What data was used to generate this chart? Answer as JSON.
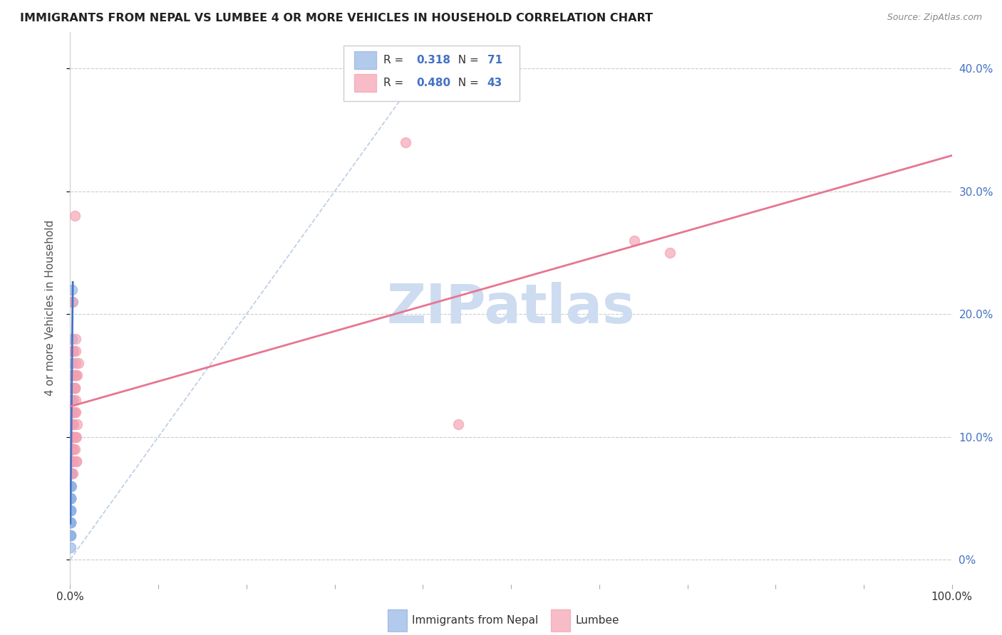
{
  "title": "IMMIGRANTS FROM NEPAL VS LUMBEE 4 OR MORE VEHICLES IN HOUSEHOLD CORRELATION CHART",
  "source": "Source: ZipAtlas.com",
  "ylabel": "4 or more Vehicles in Household",
  "xlim": [
    0,
    1.0
  ],
  "ylim": [
    -0.02,
    0.43
  ],
  "yticks": [
    0.0,
    0.1,
    0.2,
    0.3,
    0.4
  ],
  "xticks": [
    0.0,
    0.1,
    0.2,
    0.3,
    0.4,
    0.5,
    0.6,
    0.7,
    0.8,
    0.9,
    1.0
  ],
  "legend_R1": "0.318",
  "legend_N1": "71",
  "legend_R2": "0.480",
  "legend_N2": "43",
  "color_nepal": "#92b4e3",
  "color_lumbee": "#f4a0b0",
  "color_nepal_line": "#4472c4",
  "color_lumbee_line": "#e87590",
  "color_axis_right": "#4472c4",
  "watermark_color": "#cddcf0",
  "nepal_x": [
    0.0005,
    0.001,
    0.0008,
    0.0015,
    0.002,
    0.0008,
    0.0006,
    0.0005,
    0.0012,
    0.0018,
    0.0007,
    0.0009,
    0.0013,
    0.0006,
    0.0004,
    0.001,
    0.0017,
    0.0011,
    0.0025,
    0.0009,
    0.0005,
    0.002,
    0.0013,
    0.0008,
    0.0004,
    0.0016,
    0.0012,
    0.0009,
    0.0004,
    0.0011,
    0.0022,
    0.0008,
    0.0005,
    0.0013,
    0.0019,
    0.0015,
    0.0008,
    0.0004,
    0.0008,
    0.0012,
    0.0004,
    0.0007,
    0.0004,
    0.0015,
    0.0011,
    0.0007,
    0.0019,
    0.0004,
    0.0011,
    0.0008,
    0.0016,
    0.0004,
    0.0007,
    0.001,
    0.0003,
    0.0019,
    0.0008,
    0.0011,
    0.0003,
    0.0007,
    0.0011,
    0.0015,
    0.0003,
    0.0007,
    0.0003,
    0.001,
    0.0007,
    0.003,
    0.0003,
    0.0011,
    0.0007
  ],
  "nepal_y": [
    0.08,
    0.12,
    0.06,
    0.1,
    0.22,
    0.07,
    0.05,
    0.04,
    0.09,
    0.15,
    0.07,
    0.08,
    0.11,
    0.06,
    0.03,
    0.13,
    0.16,
    0.08,
    0.21,
    0.09,
    0.05,
    0.14,
    0.1,
    0.07,
    0.04,
    0.12,
    0.09,
    0.06,
    0.03,
    0.08,
    0.18,
    0.07,
    0.05,
    0.11,
    0.13,
    0.14,
    0.08,
    0.03,
    0.07,
    0.1,
    0.04,
    0.06,
    0.03,
    0.11,
    0.09,
    0.05,
    0.15,
    0.04,
    0.08,
    0.06,
    0.1,
    0.03,
    0.05,
    0.07,
    0.02,
    0.12,
    0.06,
    0.09,
    0.02,
    0.05,
    0.08,
    0.11,
    0.02,
    0.06,
    0.01,
    0.07,
    0.04,
    0.17,
    0.02,
    0.09,
    0.05
  ],
  "lumbee_x": [
    0.002,
    0.003,
    0.005,
    0.004,
    0.007,
    0.006,
    0.002,
    0.004,
    0.003,
    0.006,
    0.005,
    0.003,
    0.007,
    0.002,
    0.009,
    0.006,
    0.004,
    0.008,
    0.003,
    0.005,
    0.38,
    0.004,
    0.006,
    0.003,
    0.005,
    0.007,
    0.004,
    0.003,
    0.005,
    0.006,
    0.64,
    0.68,
    0.003,
    0.006,
    0.004,
    0.008,
    0.003,
    0.005,
    0.006,
    0.004,
    0.003,
    0.006,
    0.44
  ],
  "lumbee_y": [
    0.21,
    0.09,
    0.28,
    0.1,
    0.08,
    0.12,
    0.17,
    0.13,
    0.11,
    0.15,
    0.09,
    0.1,
    0.08,
    0.07,
    0.16,
    0.13,
    0.09,
    0.11,
    0.1,
    0.14,
    0.34,
    0.15,
    0.17,
    0.09,
    0.14,
    0.1,
    0.11,
    0.08,
    0.12,
    0.15,
    0.26,
    0.25,
    0.08,
    0.16,
    0.17,
    0.15,
    0.09,
    0.14,
    0.18,
    0.12,
    0.07,
    0.1,
    0.11
  ]
}
